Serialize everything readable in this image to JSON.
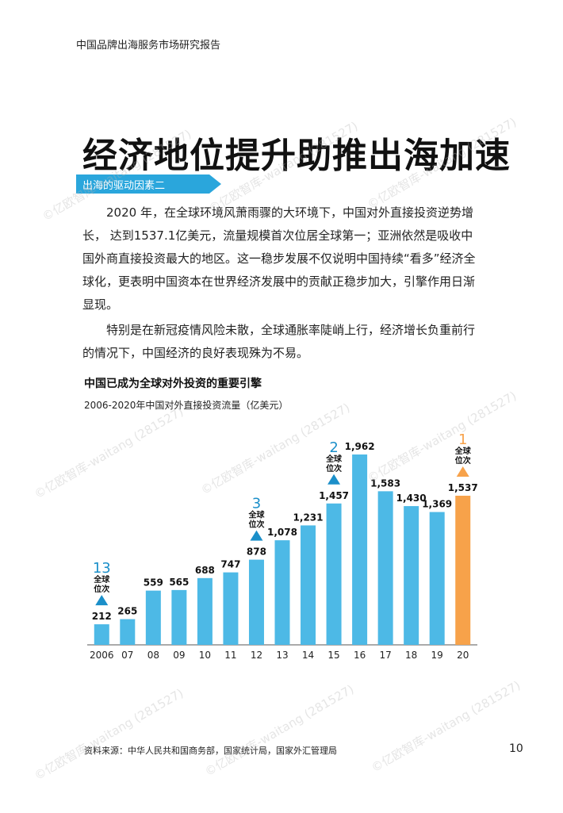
{
  "header": {
    "text": "中国品牌出海服务市场研究报告"
  },
  "title": "经济地位提升助推出海加速",
  "banner": {
    "label": "出海的驱动因素二"
  },
  "paragraphs": [
    "2020 年，在全球环境风萧雨骤的大环境下，中国对外直接投资逆势增长， 达到1537.1亿美元，流量规模首次位居全球第一；亚洲依然是吸收中国外商直接投资最大的地区。这一稳步发展不仅说明中国持续“看多”经济全球化，更表明中国资本在世界经济发展中的贡献正稳步加大，引擎作用日渐显现。",
    "特别是在新冠疫情风险未散，全球通胀率陡峭上行，经济增长负重前行的情况下，中国经济的良好表现殊为不易。"
  ],
  "watermark": "©亿欧智库-waitang (281527)",
  "colors": {
    "bar": "#4db9e6",
    "highlight": "#f7a24a",
    "marker": "#1b8fc9",
    "banner": "#2aa6dc"
  },
  "chart_data": {
    "type": "bar",
    "title": "中国已成为全球对外投资的重要引擎",
    "subtitle": "2006-2020年中国对外直接投资流量（亿美元）",
    "categories": [
      "2006",
      "07",
      "08",
      "09",
      "10",
      "11",
      "12",
      "13",
      "14",
      "15",
      "16",
      "17",
      "18",
      "19",
      "20"
    ],
    "values": [
      212,
      265,
      559,
      565,
      688,
      747,
      878,
      1078,
      1231,
      1457,
      1962,
      1583,
      1430,
      1369,
      1537
    ],
    "value_labels": [
      "212",
      "265",
      "559",
      "565",
      "688",
      "747",
      "878",
      "1,078",
      "1,231",
      "1,457",
      "1,962",
      "1,583",
      "1,430",
      "1,369",
      "1,537"
    ],
    "highlight_index": 14,
    "ylim": [
      0,
      2050
    ],
    "grid": false,
    "rank_markers": [
      {
        "index": 0,
        "rank": "13",
        "label_lines": [
          "全球",
          "位次"
        ],
        "color": "#1b8fc9"
      },
      {
        "index": 6,
        "rank": "3",
        "label_lines": [
          "全球",
          "位次"
        ],
        "color": "#1b8fc9"
      },
      {
        "index": 9,
        "rank": "2",
        "label_lines": [
          "全球",
          "位次"
        ],
        "color": "#1b8fc9"
      },
      {
        "index": 14,
        "rank": "1",
        "label_lines": [
          "全球",
          "位次"
        ],
        "color": "#f7a24a"
      }
    ]
  },
  "footer": {
    "source": "资料来源：中华人民共和国商务部，国家统计局，国家外汇管理局",
    "page_number": "10"
  }
}
